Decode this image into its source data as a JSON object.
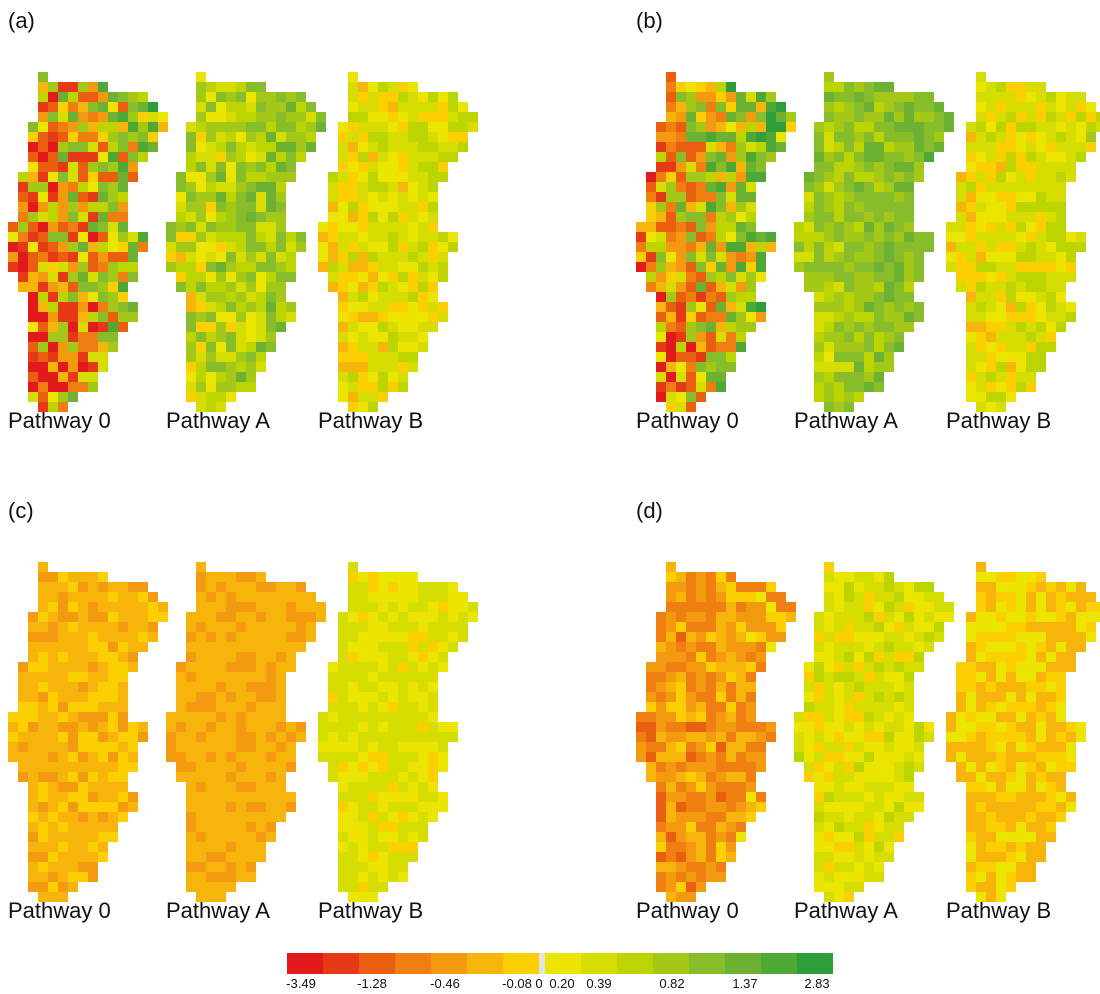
{
  "panels": [
    {
      "id": "a",
      "label": "(a)",
      "maps": [
        {
          "caption": "Pathway 0",
          "seed": 11,
          "bias": -0.35,
          "spread": 1.9,
          "grad": 1.6
        },
        {
          "caption": "Pathway A",
          "seed": 12,
          "bias": 0.55,
          "spread": 0.7,
          "grad": 0.45
        },
        {
          "caption": "Pathway B",
          "seed": 13,
          "bias": 0.12,
          "spread": 0.35,
          "grad": 0.15
        }
      ]
    },
    {
      "id": "b",
      "label": "(b)",
      "maps": [
        {
          "caption": "Pathway 0",
          "seed": 21,
          "bias": 0.05,
          "spread": 1.6,
          "grad": 1.9
        },
        {
          "caption": "Pathway A",
          "seed": 22,
          "bias": 0.75,
          "spread": 0.55,
          "grad": 0.5
        },
        {
          "caption": "Pathway B",
          "seed": 23,
          "bias": 0.15,
          "spread": 0.35,
          "grad": 0.2
        }
      ]
    },
    {
      "id": "c",
      "label": "(c)",
      "maps": [
        {
          "caption": "Pathway 0",
          "seed": 31,
          "bias": -0.2,
          "spread": 0.2,
          "grad": 0.05
        },
        {
          "caption": "Pathway A",
          "seed": 32,
          "bias": -0.25,
          "spread": 0.15,
          "grad": 0.0
        },
        {
          "caption": "Pathway B",
          "seed": 33,
          "bias": 0.12,
          "spread": 0.2,
          "grad": 0.0
        }
      ]
    },
    {
      "id": "d",
      "label": "(d)",
      "maps": [
        {
          "caption": "Pathway 0",
          "seed": 41,
          "bias": -0.45,
          "spread": 0.55,
          "grad": 0.1
        },
        {
          "caption": "Pathway A",
          "seed": 42,
          "bias": 0.15,
          "spread": 0.25,
          "grad": 0.05
        },
        {
          "caption": "Pathway B",
          "seed": 43,
          "bias": -0.08,
          "spread": 0.25,
          "grad": 0.0
        }
      ]
    }
  ],
  "legend": {
    "ticks": [
      "-3.49",
      "-1.28",
      "-0.46",
      "-0.08",
      "0",
      "0.20",
      "0.39",
      "0.82",
      "1.37",
      "2.83"
    ],
    "colors": [
      "#e31a1c",
      "#e63a16",
      "#ea5e10",
      "#ee7f10",
      "#f39a10",
      "#f7b50c",
      "#fcd000",
      "#e3e3e3",
      "#ece500",
      "#d5de00",
      "#bcd400",
      "#a3c817",
      "#87bd2a",
      "#6cb131",
      "#4ea836",
      "#2e9e3a"
    ]
  }
}
